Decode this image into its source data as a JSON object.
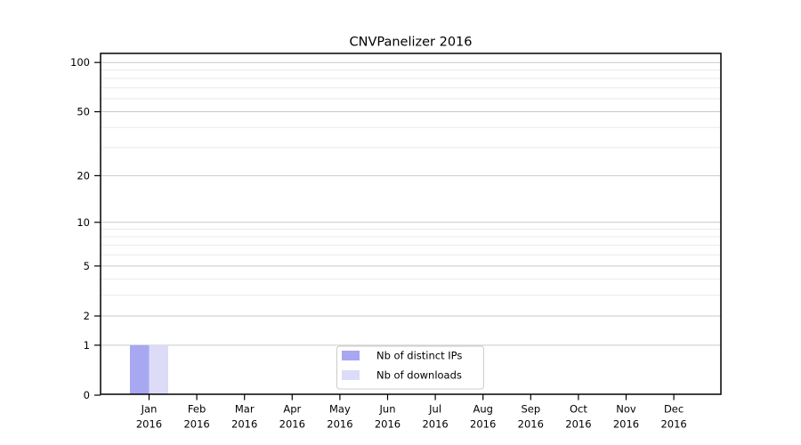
{
  "chart_data": {
    "type": "bar",
    "title": "CNVPanelizer 2016",
    "categories": [
      "Jan",
      "Feb",
      "Mar",
      "Apr",
      "May",
      "Jun",
      "Jul",
      "Aug",
      "Sep",
      "Oct",
      "Nov",
      "Dec"
    ],
    "category_year": "2016",
    "series": [
      {
        "name": "Nb of distinct IPs",
        "color": "#a7a7f2",
        "values": [
          1,
          0,
          0,
          0,
          0,
          0,
          0,
          0,
          0,
          0,
          0,
          0
        ]
      },
      {
        "name": "Nb of downloads",
        "color": "#dcdcf8",
        "values": [
          1,
          0,
          0,
          0,
          0,
          0,
          0,
          0,
          0,
          0,
          0,
          0
        ]
      }
    ],
    "yscale": "log1p",
    "ylim": [
      0,
      113
    ],
    "yticks": [
      0,
      1,
      2,
      5,
      10,
      20,
      50,
      100
    ],
    "yticks_minor": [
      3,
      4,
      6,
      7,
      8,
      9,
      30,
      40,
      60,
      70,
      80,
      90
    ],
    "grid": true,
    "legend_position": "lower-center",
    "colors": {
      "grid_major": "#c9c9c9",
      "grid_minor": "#eaeaea",
      "spine": "#000000",
      "background": "#ffffff"
    }
  }
}
